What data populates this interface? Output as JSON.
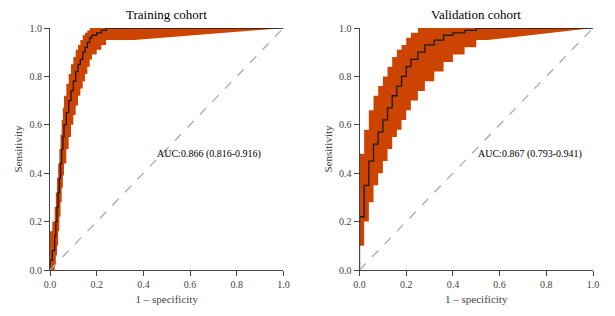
{
  "chart_data": [
    {
      "type": "line",
      "title": "Training cohort",
      "x_label": "1 – specificity",
      "y_label": "Sensitivity",
      "xlim": [
        0.0,
        1.0
      ],
      "ylim": [
        0.0,
        1.0
      ],
      "xticks": [
        {
          "value": 0.0,
          "label": "0.0"
        },
        0.2,
        0.4,
        0.6,
        0.8,
        {
          "value": 1.0,
          "label": "1.0"
        }
      ],
      "yticks": [
        {
          "value": 0.0,
          "label": "0.0"
        },
        0.2,
        0.4,
        0.6,
        0.8,
        {
          "value": 1.0,
          "label": "1.0"
        }
      ],
      "grid": false,
      "annotations": [
        {
          "text": "AUC:0.866 (0.816-0.916)",
          "x": 0.68,
          "y": 0.48
        }
      ],
      "series": [
        {
          "type": "band",
          "color": "#CC4400",
          "x": [
            0,
            0,
            0.01,
            0.01,
            0.02,
            0.02,
            0.025,
            0.025,
            0.03,
            0.03,
            0.035,
            0.035,
            0.04,
            0.04,
            0.045,
            0.045,
            0.05,
            0.05,
            0.055,
            0.055,
            0.06,
            0.06,
            0.07,
            0.07,
            0.08,
            0.08,
            0.09,
            0.09,
            0.1,
            0.1,
            0.11,
            0.11,
            0.12,
            0.12,
            0.13,
            0.13,
            0.14,
            0.14,
            0.15,
            0.15,
            0.16,
            0.16,
            0.17,
            0.17,
            0.18,
            0.18,
            0.2,
            0.2,
            0.22,
            0.22,
            0.24,
            0.24,
            0.26,
            0.26,
            0.28,
            0.28,
            0.3,
            0.3,
            0.33,
            0.33,
            0.36,
            0.36,
            1.0
          ],
          "upper": [
            0.12,
            0.16,
            0.16,
            0.2,
            0.2,
            0.26,
            0.26,
            0.32,
            0.32,
            0.38,
            0.38,
            0.44,
            0.44,
            0.5,
            0.5,
            0.56,
            0.56,
            0.62,
            0.62,
            0.67,
            0.67,
            0.72,
            0.72,
            0.77,
            0.77,
            0.81,
            0.81,
            0.85,
            0.85,
            0.88,
            0.88,
            0.91,
            0.91,
            0.93,
            0.93,
            0.95,
            0.95,
            0.97,
            0.97,
            0.98,
            0.98,
            0.99,
            0.99,
            1.0,
            1.0,
            1.0,
            1.0,
            1.0,
            1.0,
            1.0,
            1.0,
            1.0,
            1.0,
            1.0,
            1.0,
            1.0,
            1.0,
            1.0,
            1.0,
            1.0,
            1.0,
            1.0,
            1.0
          ],
          "lower": [
            0,
            0,
            0,
            0,
            0,
            0.02,
            0.02,
            0.06,
            0.06,
            0.1,
            0.1,
            0.16,
            0.16,
            0.22,
            0.22,
            0.28,
            0.28,
            0.34,
            0.34,
            0.39,
            0.39,
            0.44,
            0.44,
            0.5,
            0.5,
            0.55,
            0.55,
            0.6,
            0.6,
            0.64,
            0.64,
            0.68,
            0.68,
            0.72,
            0.72,
            0.75,
            0.75,
            0.78,
            0.78,
            0.81,
            0.81,
            0.84,
            0.84,
            0.87,
            0.87,
            0.89,
            0.89,
            0.91,
            0.91,
            0.93,
            0.93,
            0.95,
            0.95,
            0.95,
            0.95,
            0.95,
            0.95,
            0.95,
            0.95,
            0.95,
            0.95,
            0.95,
            1.0
          ]
        },
        {
          "type": "line",
          "color": "#1a1a1a",
          "x": [
            0,
            0,
            0.01,
            0.01,
            0.02,
            0.02,
            0.025,
            0.025,
            0.03,
            0.03,
            0.035,
            0.035,
            0.04,
            0.04,
            0.045,
            0.045,
            0.05,
            0.05,
            0.055,
            0.055,
            0.06,
            0.06,
            0.07,
            0.07,
            0.08,
            0.08,
            0.09,
            0.09,
            0.1,
            0.1,
            0.11,
            0.11,
            0.12,
            0.12,
            0.13,
            0.13,
            0.14,
            0.14,
            0.15,
            0.15,
            0.16,
            0.16,
            0.17,
            0.17,
            0.18,
            0.18,
            0.2,
            0.2,
            0.22,
            0.22,
            0.24,
            0.24,
            0.26,
            0.26,
            0.28,
            0.28,
            0.3,
            0.3,
            0.33,
            0.33,
            0.36,
            0.36,
            1.0
          ],
          "values": [
            0,
            0.04,
            0.04,
            0.08,
            0.08,
            0.14,
            0.14,
            0.2,
            0.2,
            0.26,
            0.26,
            0.32,
            0.32,
            0.38,
            0.38,
            0.44,
            0.44,
            0.5,
            0.5,
            0.55,
            0.55,
            0.6,
            0.6,
            0.65,
            0.65,
            0.7,
            0.7,
            0.74,
            0.74,
            0.78,
            0.78,
            0.82,
            0.82,
            0.85,
            0.85,
            0.87,
            0.87,
            0.9,
            0.9,
            0.92,
            0.92,
            0.94,
            0.94,
            0.96,
            0.96,
            0.97,
            0.97,
            0.98,
            0.98,
            0.99,
            0.99,
            1.0,
            1.0,
            1.0,
            1.0,
            1.0,
            1.0,
            1.0,
            1.0,
            1.0,
            1.0,
            1.0,
            1.0
          ]
        },
        {
          "type": "line",
          "color": "#aaaaaa",
          "line_style": "dashed",
          "x": [
            0,
            1
          ],
          "values": [
            0,
            1
          ]
        }
      ]
    },
    {
      "type": "line",
      "title": "Validation cohort",
      "x_label": "1 – specificity",
      "y_label": "Sensitivity",
      "xlim": [
        0.0,
        1.0
      ],
      "ylim": [
        0.0,
        1.0
      ],
      "xticks": [
        {
          "value": 0.0,
          "label": "0.0"
        },
        0.2,
        0.4,
        0.6,
        0.8,
        {
          "value": 1.0,
          "label": "1.0"
        }
      ],
      "yticks": [
        {
          "value": 0.0,
          "label": "0.0"
        },
        0.2,
        0.4,
        0.6,
        0.8,
        {
          "value": 1.0,
          "label": "1.0"
        }
      ],
      "grid": false,
      "annotations": [
        {
          "text": "AUC:0.867 (0.793-0.941)",
          "x": 0.73,
          "y": 0.48
        }
      ],
      "series": [
        {
          "type": "band",
          "color": "#CC4400",
          "x": [
            0,
            0,
            0.02,
            0.02,
            0.04,
            0.04,
            0.06,
            0.06,
            0.08,
            0.08,
            0.1,
            0.1,
            0.12,
            0.12,
            0.14,
            0.14,
            0.16,
            0.16,
            0.18,
            0.18,
            0.2,
            0.2,
            0.22,
            0.22,
            0.25,
            0.25,
            0.28,
            0.28,
            0.32,
            0.32,
            0.36,
            0.36,
            0.4,
            0.4,
            0.45,
            0.45,
            0.5,
            0.5,
            0.55,
            0.55,
            1.0
          ],
          "upper": [
            0.4,
            0.48,
            0.48,
            0.58,
            0.58,
            0.66,
            0.66,
            0.72,
            0.72,
            0.76,
            0.76,
            0.8,
            0.8,
            0.84,
            0.84,
            0.88,
            0.88,
            0.91,
            0.91,
            0.93,
            0.93,
            0.96,
            0.96,
            0.98,
            0.98,
            1.0,
            1.0,
            1.0,
            1.0,
            1.0,
            1.0,
            1.0,
            1.0,
            1.0,
            1.0,
            1.0,
            1.0,
            1.0,
            1.0,
            1.0,
            1.0
          ],
          "lower": [
            0,
            0.1,
            0.1,
            0.2,
            0.2,
            0.28,
            0.28,
            0.35,
            0.35,
            0.4,
            0.4,
            0.45,
            0.45,
            0.5,
            0.5,
            0.55,
            0.55,
            0.58,
            0.58,
            0.62,
            0.62,
            0.66,
            0.66,
            0.7,
            0.7,
            0.74,
            0.74,
            0.78,
            0.78,
            0.82,
            0.82,
            0.86,
            0.86,
            0.89,
            0.89,
            0.92,
            0.92,
            0.95,
            0.95,
            0.95,
            1.0
          ]
        },
        {
          "type": "line",
          "color": "#1a1a1a",
          "x": [
            0,
            0,
            0.02,
            0.02,
            0.04,
            0.04,
            0.06,
            0.06,
            0.08,
            0.08,
            0.1,
            0.1,
            0.12,
            0.12,
            0.14,
            0.14,
            0.16,
            0.16,
            0.18,
            0.18,
            0.2,
            0.2,
            0.22,
            0.22,
            0.25,
            0.25,
            0.28,
            0.28,
            0.32,
            0.32,
            0.36,
            0.36,
            0.4,
            0.4,
            0.45,
            0.45,
            0.5,
            0.5,
            0.55,
            0.55,
            1.0
          ],
          "values": [
            0,
            0.22,
            0.22,
            0.35,
            0.35,
            0.45,
            0.45,
            0.52,
            0.52,
            0.57,
            0.57,
            0.62,
            0.62,
            0.67,
            0.67,
            0.72,
            0.72,
            0.76,
            0.76,
            0.8,
            0.8,
            0.84,
            0.84,
            0.87,
            0.87,
            0.9,
            0.9,
            0.93,
            0.93,
            0.95,
            0.95,
            0.97,
            0.97,
            0.98,
            0.98,
            0.99,
            0.99,
            1.0,
            1.0,
            1.0,
            1.0
          ]
        },
        {
          "type": "line",
          "color": "#aaaaaa",
          "line_style": "dashed",
          "x": [
            0,
            1
          ],
          "values": [
            0,
            1
          ]
        }
      ]
    }
  ]
}
